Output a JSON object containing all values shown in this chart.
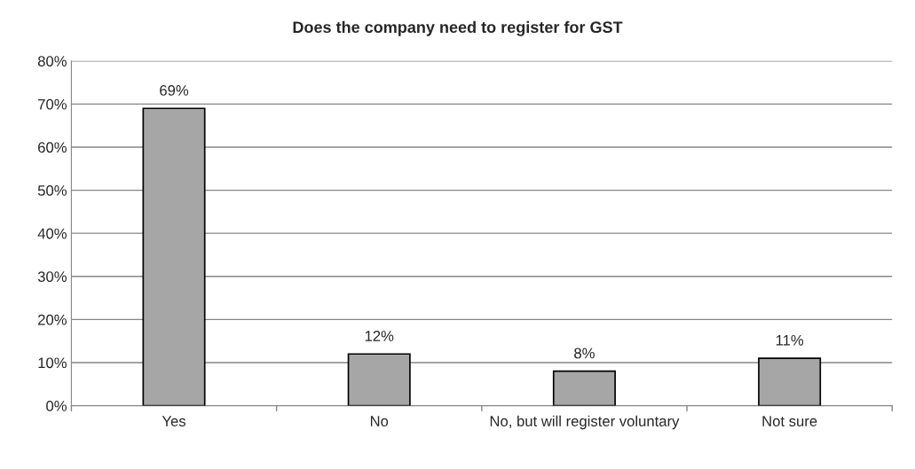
{
  "chart_data": {
    "type": "bar",
    "title": "Does the company need to register for GST",
    "categories": [
      "Yes",
      "No",
      "No, but will register voluntary",
      "Not sure"
    ],
    "values": [
      69,
      12,
      8,
      11
    ],
    "color": "#a6a6a6",
    "value_labels": [
      "69%",
      "12%",
      "8%",
      "11%"
    ],
    "ylim": [
      0,
      80
    ],
    "yticks": [
      {
        "value": 0,
        "label": "0%"
      },
      {
        "value": 10,
        "label": "10%"
      },
      {
        "value": 20,
        "label": "20%"
      },
      {
        "value": 30,
        "label": "30%"
      },
      {
        "value": 40,
        "label": "40%"
      },
      {
        "value": 50,
        "label": "50%"
      },
      {
        "value": 60,
        "label": "60%"
      },
      {
        "value": 70,
        "label": "70%"
      },
      {
        "value": 80,
        "label": "80%"
      }
    ],
    "grid": "y",
    "legend": false
  }
}
